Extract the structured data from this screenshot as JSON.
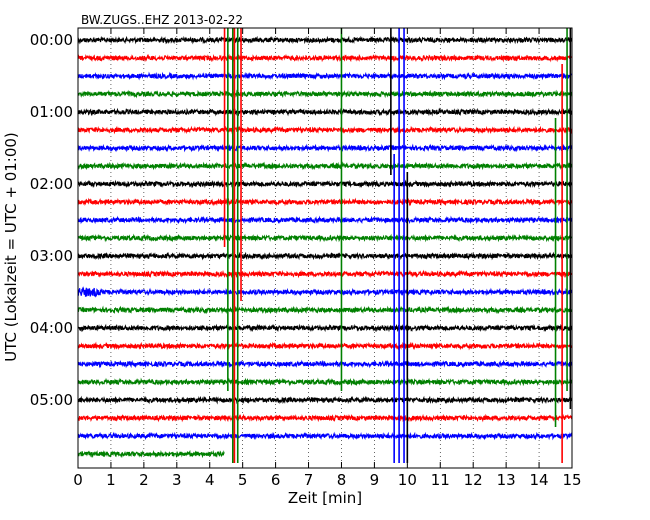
{
  "chart_data": {
    "type": "line",
    "title": "BW.ZUGS..EHZ 2013-02-22",
    "xlabel": "Zeit  [min]",
    "ylabel": "UTC (Lokalzeit = UTC + 01:00)",
    "xlim": [
      0,
      15
    ],
    "x_ticks": [
      0,
      1,
      2,
      3,
      4,
      5,
      6,
      7,
      8,
      9,
      10,
      11,
      12,
      13,
      14,
      15
    ],
    "y_ticks": [
      "00:00",
      "01:00",
      "02:00",
      "03:00",
      "04:00",
      "05:00"
    ],
    "trace_interval_minutes": 15,
    "trace_count": 24,
    "grid": true,
    "colors": [
      "#000000",
      "#ff0000",
      "#0000ff",
      "#008000"
    ],
    "last_trace_end_min": 4.45,
    "vertical_spikes": [
      {
        "x": 4.45,
        "color": "#ff0000",
        "first_trace": 0,
        "last_trace": 11
      },
      {
        "x": 4.55,
        "color": "#008000",
        "first_trace": 0,
        "last_trace": 19
      },
      {
        "x": 4.7,
        "color": "#008000",
        "first_trace": 0,
        "last_trace": 23
      },
      {
        "x": 4.75,
        "color": "#ff0000",
        "first_trace": 0,
        "last_trace": 23
      },
      {
        "x": 4.85,
        "color": "#008000",
        "first_trace": 0,
        "last_trace": 23
      },
      {
        "x": 4.95,
        "color": "#ff0000",
        "first_trace": 0,
        "last_trace": 14
      },
      {
        "x": 8.0,
        "color": "#008000",
        "first_trace": 0,
        "last_trace": 19
      },
      {
        "x": 9.5,
        "color": "#000000",
        "first_trace": 0,
        "last_trace": 7
      },
      {
        "x": 9.6,
        "color": "#0000ff",
        "first_trace": 7,
        "last_trace": 23
      },
      {
        "x": 9.75,
        "color": "#0000ff",
        "first_trace": 0,
        "last_trace": 23
      },
      {
        "x": 9.9,
        "color": "#0000ff",
        "first_trace": 0,
        "last_trace": 23
      },
      {
        "x": 10.0,
        "color": "#000000",
        "first_trace": 8,
        "last_trace": 23
      },
      {
        "x": 14.5,
        "color": "#008000",
        "first_trace": 5,
        "last_trace": 21
      },
      {
        "x": 14.7,
        "color": "#ff0000",
        "first_trace": 2,
        "last_trace": 23
      },
      {
        "x": 14.85,
        "color": "#008000",
        "first_trace": 0,
        "last_trace": 19
      },
      {
        "x": 14.95,
        "color": "#000000",
        "first_trace": 0,
        "last_trace": 20
      }
    ]
  }
}
